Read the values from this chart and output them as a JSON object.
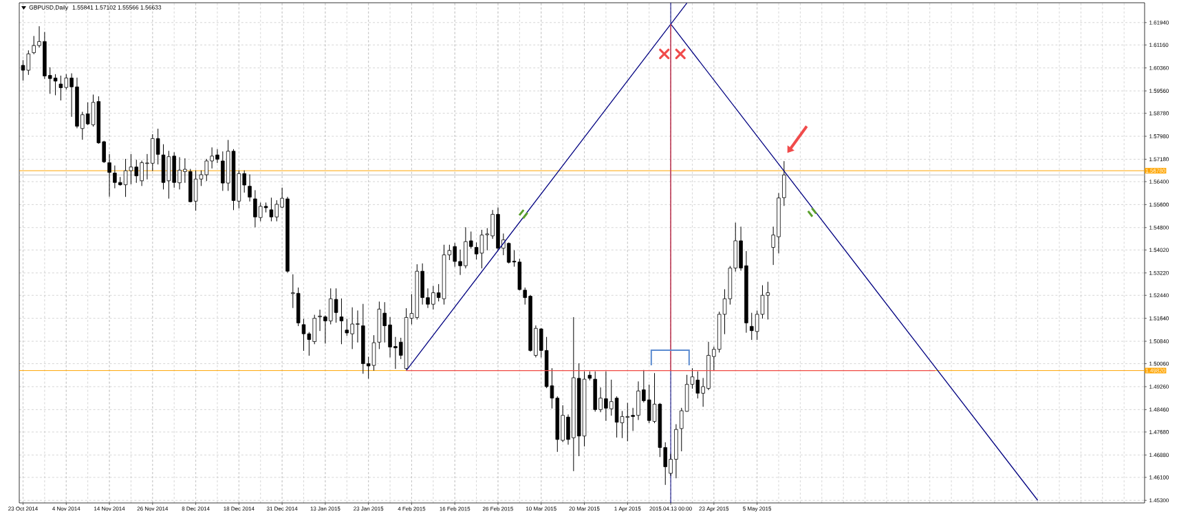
{
  "chart_data": {
    "type": "candlestick",
    "title": "GBPUSD,Daily",
    "subtitle": "1.55841 1.57102 1.55566 1.56633",
    "categories": [
      "23 Oct 2014",
      null,
      null,
      null,
      null,
      null,
      null,
      null,
      "4 Nov 2014",
      null,
      null,
      null,
      null,
      null,
      null,
      null,
      "14 Nov 2014",
      null,
      null,
      null,
      null,
      null,
      null,
      null,
      "26 Nov 2014",
      null,
      null,
      null,
      null,
      null,
      null,
      null,
      "8 Dec 2014",
      null,
      null,
      null,
      null,
      null,
      null,
      null,
      "18 Dec 2014",
      null,
      null,
      null,
      null,
      null,
      null,
      null,
      "31 Dec 2014",
      null,
      null,
      null,
      null,
      null,
      null,
      null,
      "13 Jan 2015",
      null,
      null,
      null,
      null,
      null,
      null,
      null,
      "23 Jan 2015",
      null,
      null,
      null,
      null,
      null,
      null,
      null,
      "4 Feb 2015",
      null,
      null,
      null,
      null,
      null,
      null,
      null,
      "16 Feb 2015",
      null,
      null,
      null,
      null,
      null,
      null,
      null,
      "26 Feb 2015",
      null,
      null,
      null,
      null,
      null,
      null,
      null,
      "10 Mar 2015",
      null,
      null,
      null,
      null,
      null,
      null,
      null,
      "20 Mar 2015",
      null,
      null,
      null,
      null,
      null,
      null,
      null,
      "1 Apr 2015",
      null,
      null,
      null,
      null,
      null,
      null,
      null,
      "2015.04.13 00:00",
      null,
      null,
      null,
      null,
      null,
      null,
      null,
      "23 Apr 2015",
      null,
      null,
      null,
      null,
      null,
      null,
      null,
      "5 May 2015",
      null,
      null,
      null,
      null,
      null,
      null,
      null,
      null,
      null,
      null,
      null,
      null,
      null,
      null,
      null,
      null,
      null,
      null,
      null,
      null,
      null,
      null,
      null,
      null,
      null,
      null,
      null,
      null,
      null,
      null,
      null,
      null,
      null,
      null,
      null,
      null,
      null,
      null,
      null,
      null,
      null,
      null,
      null,
      null,
      null,
      null,
      null,
      null,
      null,
      null,
      null,
      null,
      null,
      null,
      null,
      null,
      null,
      null,
      null,
      null,
      null,
      null,
      null,
      null,
      null,
      null,
      null,
      null,
      null,
      null,
      null
    ],
    "ohlc": [
      [
        1.6045,
        1.6062,
        1.5993,
        1.6028
      ],
      [
        1.6028,
        1.6096,
        1.6013,
        1.6085
      ],
      [
        1.6089,
        1.6146,
        1.6085,
        1.6114
      ],
      [
        1.6114,
        1.618,
        1.6108,
        1.6128
      ],
      [
        1.6128,
        1.616,
        1.5999,
        1.6008
      ],
      [
        1.601,
        1.6037,
        1.5947,
        1.5999
      ],
      [
        1.6001,
        1.6013,
        1.5942,
        1.599
      ],
      [
        1.598,
        1.6008,
        1.5924,
        1.5967
      ],
      [
        1.5968,
        1.6013,
        1.5962,
        1.6001
      ],
      [
        1.6001,
        1.6016,
        1.5867,
        1.597
      ],
      [
        1.597,
        1.6001,
        1.5827,
        1.5833
      ],
      [
        1.5825,
        1.5882,
        1.5787,
        1.5873
      ],
      [
        1.5876,
        1.5915,
        1.5838,
        1.5841
      ],
      [
        1.5838,
        1.5942,
        1.5833,
        1.5916
      ],
      [
        1.5919,
        1.5936,
        1.5773,
        1.5775
      ],
      [
        1.5779,
        1.5781,
        1.5706,
        1.5709
      ],
      [
        1.5706,
        1.5735,
        1.5589,
        1.5672
      ],
      [
        1.567,
        1.5695,
        1.5618,
        1.5637
      ],
      [
        1.5637,
        1.5655,
        1.5627,
        1.5629
      ],
      [
        1.5629,
        1.5718,
        1.5588,
        1.5678
      ],
      [
        1.5678,
        1.5735,
        1.5632,
        1.5691
      ],
      [
        1.5691,
        1.5715,
        1.5637,
        1.566
      ],
      [
        1.5643,
        1.5712,
        1.5626,
        1.5706
      ],
      [
        1.5703,
        1.5735,
        1.5649,
        1.5705
      ],
      [
        1.5704,
        1.5804,
        1.5678,
        1.579
      ],
      [
        1.579,
        1.5823,
        1.5701,
        1.5735
      ],
      [
        1.5733,
        1.5769,
        1.5614,
        1.5637
      ],
      [
        1.5643,
        1.5746,
        1.5582,
        1.5727
      ],
      [
        1.5729,
        1.5741,
        1.562,
        1.5637
      ],
      [
        1.5636,
        1.5724,
        1.5614,
        1.568
      ],
      [
        1.5675,
        1.572,
        1.5637,
        1.5683
      ],
      [
        1.5675,
        1.5683,
        1.5569,
        1.557
      ],
      [
        1.5572,
        1.5678,
        1.554,
        1.5649
      ],
      [
        1.5649,
        1.5678,
        1.5626,
        1.5664
      ],
      [
        1.5664,
        1.5718,
        1.5643,
        1.5712
      ],
      [
        1.5712,
        1.5758,
        1.5687,
        1.5729
      ],
      [
        1.5733,
        1.5752,
        1.5706,
        1.5718
      ],
      [
        1.5712,
        1.5744,
        1.5609,
        1.5635
      ],
      [
        1.5635,
        1.5784,
        1.5609,
        1.5746
      ],
      [
        1.5746,
        1.5752,
        1.5542,
        1.5574
      ],
      [
        1.5572,
        1.5678,
        1.5548,
        1.5668
      ],
      [
        1.5668,
        1.5678,
        1.5603,
        1.5628
      ],
      [
        1.5624,
        1.5664,
        1.5572,
        1.5586
      ],
      [
        1.558,
        1.5609,
        1.5482,
        1.5517
      ],
      [
        1.5515,
        1.5566,
        1.5503,
        1.5554
      ],
      [
        1.5554,
        1.5566,
        1.5534,
        1.5549
      ],
      [
        1.5542,
        1.5583,
        1.5503,
        1.5517
      ],
      [
        1.5517,
        1.5574,
        1.5503,
        1.5561
      ],
      [
        1.5551,
        1.5618,
        1.5549,
        1.5582
      ],
      [
        1.558,
        1.5586,
        1.5324,
        1.5328
      ],
      [
        1.525,
        1.5316,
        1.5201,
        1.5253
      ],
      [
        1.5251,
        1.527,
        1.5138,
        1.5148
      ],
      [
        1.5142,
        1.5161,
        1.5052,
        1.511
      ],
      [
        1.511,
        1.5115,
        1.5035,
        1.509
      ],
      [
        1.5083,
        1.5175,
        1.5075,
        1.5164
      ],
      [
        1.5169,
        1.5193,
        1.5121,
        1.5172
      ],
      [
        1.5169,
        1.5173,
        1.5077,
        1.5155
      ],
      [
        1.5155,
        1.5267,
        1.5144,
        1.5232
      ],
      [
        1.523,
        1.5267,
        1.515,
        1.5184
      ],
      [
        1.5169,
        1.5232,
        1.5075,
        1.5155
      ],
      [
        1.5123,
        1.5161,
        1.5104,
        1.5113
      ],
      [
        1.511,
        1.5201,
        1.5058,
        1.5144
      ],
      [
        1.5143,
        1.519,
        1.5081,
        1.5145
      ],
      [
        1.5138,
        1.5213,
        1.4972,
        1.5006
      ],
      [
        1.5006,
        1.5029,
        1.4955,
        1.4998
      ],
      [
        1.5,
        1.5104,
        1.4983,
        1.5079
      ],
      [
        1.5081,
        1.5221,
        1.5058,
        1.5196
      ],
      [
        1.5182,
        1.5219,
        1.5081,
        1.5138
      ],
      [
        1.5141,
        1.5167,
        1.5029,
        1.5064
      ],
      [
        1.5066,
        1.5098,
        1.4989,
        1.5061
      ],
      [
        1.5081,
        1.5095,
        1.5023,
        1.5035
      ],
      [
        1.4989,
        1.5198,
        1.4987,
        1.5167
      ],
      [
        1.5164,
        1.5247,
        1.5144,
        1.5181
      ],
      [
        1.5167,
        1.5351,
        1.5161,
        1.5328
      ],
      [
        1.5328,
        1.5354,
        1.5213,
        1.5236
      ],
      [
        1.5236,
        1.5267,
        1.5201,
        1.5213
      ],
      [
        1.5213,
        1.5276,
        1.5196,
        1.5253
      ],
      [
        1.5253,
        1.5282,
        1.5224,
        1.5236
      ],
      [
        1.5232,
        1.5419,
        1.5213,
        1.5385
      ],
      [
        1.5385,
        1.5419,
        1.5368,
        1.54
      ],
      [
        1.5414,
        1.5425,
        1.5345,
        1.5362
      ],
      [
        1.5362,
        1.5402,
        1.5316,
        1.5347
      ],
      [
        1.5347,
        1.548,
        1.5339,
        1.5431
      ],
      [
        1.5434,
        1.5465,
        1.5408,
        1.5414
      ],
      [
        1.5411,
        1.5427,
        1.537,
        1.5388
      ],
      [
        1.5391,
        1.5471,
        1.5339,
        1.5454
      ],
      [
        1.5455,
        1.5477,
        1.5402,
        1.5458
      ],
      [
        1.5451,
        1.554,
        1.5442,
        1.5526
      ],
      [
        1.5526,
        1.5549,
        1.5402,
        1.5408
      ],
      [
        1.5408,
        1.5458,
        1.5385,
        1.5437
      ],
      [
        1.5425,
        1.5427,
        1.5356,
        1.5359
      ],
      [
        1.5363,
        1.54,
        1.5345,
        1.536
      ],
      [
        1.536,
        1.537,
        1.5262,
        1.5264
      ],
      [
        1.5262,
        1.527,
        1.5213,
        1.5236
      ],
      [
        1.5241,
        1.5244,
        1.5049,
        1.5052
      ],
      [
        1.5035,
        1.5138,
        1.5029,
        1.5129
      ],
      [
        1.5127,
        1.5129,
        1.5029,
        1.5052
      ],
      [
        1.5052,
        1.5098,
        1.4922,
        1.4926
      ],
      [
        1.4929,
        1.4989,
        1.4851,
        1.4886
      ],
      [
        1.4886,
        1.4891,
        1.47,
        1.4742
      ],
      [
        1.4739,
        1.486,
        1.4734,
        1.4826
      ],
      [
        1.482,
        1.4828,
        1.4725,
        1.4742
      ],
      [
        1.4748,
        1.5167,
        1.4633,
        1.4957
      ],
      [
        1.4955,
        1.5006,
        1.4685,
        1.4754
      ],
      [
        1.4754,
        1.4978,
        1.4719,
        1.4952
      ],
      [
        1.4966,
        1.4978,
        1.4949,
        1.4955
      ],
      [
        1.4952,
        1.4978,
        1.484,
        1.4846
      ],
      [
        1.4846,
        1.4922,
        1.4838,
        1.4886
      ],
      [
        1.4884,
        1.4978,
        1.4808,
        1.4851
      ],
      [
        1.4849,
        1.4949,
        1.4826,
        1.4874
      ],
      [
        1.4886,
        1.4891,
        1.475,
        1.4802
      ],
      [
        1.48,
        1.484,
        1.4748,
        1.4822
      ],
      [
        1.4819,
        1.4868,
        1.4737,
        1.4822
      ],
      [
        1.4826,
        1.4851,
        1.4773,
        1.4822
      ],
      [
        1.4826,
        1.4943,
        1.4811,
        1.4911
      ],
      [
        1.4915,
        1.4983,
        1.4872,
        1.4877
      ],
      [
        1.488,
        1.4932,
        1.48,
        1.4808
      ],
      [
        1.4805,
        1.4972,
        1.48,
        1.4865
      ],
      [
        1.4865,
        1.4868,
        1.4682,
        1.4714
      ],
      [
        1.4714,
        1.4731,
        1.4585,
        1.4647
      ],
      [
        1.4624,
        1.4691,
        1.4616,
        1.4673
      ],
      [
        1.4673,
        1.4794,
        1.4608,
        1.4777
      ],
      [
        1.478,
        1.4851,
        1.4702,
        1.4842
      ],
      [
        1.484,
        1.4966,
        1.484,
        1.4934
      ],
      [
        1.4934,
        1.4989,
        1.492,
        1.496
      ],
      [
        1.4949,
        1.4978,
        1.4886,
        1.4903
      ],
      [
        1.4903,
        1.4955,
        1.4857,
        1.4926
      ],
      [
        1.492,
        1.5081,
        1.4915,
        1.5035
      ],
      [
        1.5031,
        1.5064,
        1.4983,
        1.5056
      ],
      [
        1.5056,
        1.5186,
        1.5046,
        1.5178
      ],
      [
        1.5178,
        1.5264,
        1.511,
        1.5232
      ],
      [
        1.5232,
        1.5345,
        1.5213,
        1.5339
      ],
      [
        1.5339,
        1.5496,
        1.5328,
        1.5434
      ],
      [
        1.5434,
        1.5482,
        1.5331,
        1.5339
      ],
      [
        1.5347,
        1.5397,
        1.5115,
        1.5148
      ],
      [
        1.5136,
        1.5182,
        1.509,
        1.5121
      ],
      [
        1.5118,
        1.519,
        1.509,
        1.5178
      ],
      [
        1.5178,
        1.5278,
        1.5164,
        1.5244
      ],
      [
        1.5244,
        1.529,
        1.5161,
        1.5253
      ],
      [
        1.5411,
        1.5482,
        1.5351,
        1.5454
      ],
      [
        1.5448,
        1.5599,
        1.5391,
        1.5583
      ],
      [
        1.55841,
        1.57102,
        1.55566,
        1.56633
      ],
      null,
      null,
      null,
      null,
      null,
      null,
      null,
      null,
      null,
      null,
      null,
      null,
      null,
      null,
      null,
      null,
      null,
      null,
      null,
      null,
      null,
      null,
      null,
      null,
      null,
      null,
      null,
      null,
      null,
      null,
      null,
      null,
      null,
      null,
      null,
      null,
      null,
      null,
      null,
      null,
      null,
      null,
      null,
      null,
      null,
      null,
      null,
      null,
      null,
      null,
      null,
      null,
      null,
      null,
      null,
      null,
      null,
      null,
      null,
      null,
      null,
      null,
      null,
      null,
      null,
      null
    ],
    "series": [
      {
        "type": "line",
        "color": "#000080",
        "values": [
          null,
          null,
          null,
          null,
          null,
          null,
          null,
          null,
          null,
          null,
          null,
          null,
          null,
          null,
          null,
          null,
          null,
          null,
          null,
          null,
          null,
          null,
          null,
          null,
          null,
          null,
          null,
          null,
          null,
          null,
          null,
          null,
          null,
          null,
          null,
          null,
          null,
          null,
          null,
          null,
          null,
          null,
          null,
          null,
          null,
          null,
          null,
          null,
          null,
          null,
          null,
          null,
          null,
          null,
          null,
          null,
          null,
          null,
          null,
          null,
          null,
          null,
          null,
          null,
          null,
          null,
          null,
          null,
          null,
          null,
          null,
          1.4982,
          null,
          null,
          null,
          null,
          null,
          null,
          null,
          null,
          null,
          null,
          null,
          null,
          null,
          null,
          null,
          null,
          null,
          null,
          null,
          null,
          null,
          null,
          null,
          null,
          null,
          null,
          null,
          null,
          null,
          null,
          null,
          null,
          null,
          null,
          null,
          null,
          null,
          null,
          null,
          null,
          null,
          null,
          null,
          null,
          null,
          null,
          null,
          null,
          null,
          null,
          null,
          1.6262,
          null,
          null,
          null,
          null,
          null,
          null,
          null,
          null,
          null,
          null,
          null,
          null,
          null,
          null,
          null,
          null,
          null,
          null,
          null,
          null,
          null,
          null,
          null,
          null,
          null,
          null,
          null,
          null,
          null,
          null,
          null,
          null,
          null,
          null,
          null,
          null,
          null,
          null,
          null,
          null,
          null,
          null,
          null,
          null,
          null,
          null,
          null,
          null,
          null,
          null,
          null,
          null,
          null,
          null,
          null,
          null,
          null,
          null,
          null,
          null,
          null,
          null,
          null,
          null,
          null,
          null,
          null,
          null,
          null,
          null,
          null,
          null,
          null,
          null,
          null,
          null,
          null,
          null,
          null,
          null,
          null,
          null,
          null,
          null
        ]
      },
      {
        "type": "line",
        "color": "#000080",
        "values": [
          null,
          null,
          null,
          null,
          null,
          null,
          null,
          null,
          null,
          null,
          null,
          null,
          null,
          null,
          null,
          null,
          null,
          null,
          null,
          null,
          null,
          null,
          null,
          null,
          null,
          null,
          null,
          null,
          null,
          null,
          null,
          null,
          null,
          null,
          null,
          null,
          null,
          null,
          null,
          null,
          null,
          null,
          null,
          null,
          null,
          null,
          null,
          null,
          null,
          null,
          null,
          null,
          null,
          null,
          null,
          null,
          null,
          null,
          null,
          null,
          null,
          null,
          null,
          null,
          null,
          null,
          null,
          null,
          null,
          null,
          null,
          null,
          null,
          null,
          null,
          null,
          null,
          null,
          null,
          null,
          null,
          null,
          null,
          null,
          null,
          null,
          null,
          null,
          null,
          null,
          null,
          null,
          null,
          null,
          null,
          null,
          null,
          null,
          null,
          null,
          null,
          null,
          null,
          null,
          null,
          null,
          null,
          null,
          null,
          null,
          null,
          null,
          null,
          null,
          null,
          null,
          null,
          null,
          null,
          null,
          1.6189,
          null,
          null,
          null,
          null,
          null,
          null,
          null,
          null,
          null,
          null,
          null,
          null,
          null,
          null,
          null,
          null,
          null,
          null,
          null,
          null,
          null,
          null,
          null,
          null,
          null,
          null,
          null,
          null,
          null,
          null,
          null,
          null,
          null,
          null,
          null,
          null,
          null,
          null,
          null,
          null,
          null,
          null,
          null,
          null,
          null,
          null,
          null,
          null,
          null,
          null,
          null,
          null,
          null,
          null,
          null,
          null,
          null,
          null,
          null,
          null,
          null,
          null,
          null,
          null,
          null,
          null,
          null,
          1.453,
          null,
          null,
          null,
          null,
          null,
          null,
          null,
          null,
          null,
          null,
          null,
          null,
          null,
          null,
          null,
          null,
          null,
          null,
          null
        ]
      },
      {
        "type": "line",
        "color": "#f04b4b",
        "values": [
          null,
          null,
          null,
          null,
          null,
          null,
          null,
          null,
          null,
          null,
          null,
          null,
          null,
          null,
          null,
          null,
          null,
          null,
          null,
          null,
          null,
          null,
          null,
          null,
          null,
          null,
          null,
          null,
          null,
          null,
          null,
          null,
          null,
          null,
          null,
          null,
          null,
          null,
          null,
          null,
          null,
          null,
          null,
          null,
          null,
          null,
          null,
          null,
          null,
          null,
          null,
          null,
          null,
          null,
          null,
          null,
          null,
          null,
          null,
          null,
          null,
          null,
          null,
          null,
          null,
          null,
          null,
          null,
          null,
          null,
          null,
          1.4982,
          null,
          null,
          null,
          null,
          null,
          null,
          null,
          null,
          null,
          null,
          null,
          null,
          null,
          null,
          null,
          null,
          null,
          null,
          null,
          null,
          null,
          null,
          null,
          null,
          null,
          null,
          null,
          null,
          null,
          null,
          null,
          null,
          null,
          null,
          null,
          null,
          null,
          null,
          null,
          null,
          null,
          null,
          null,
          null,
          null,
          null,
          null,
          null,
          null,
          null,
          null,
          null,
          null,
          null,
          null,
          null,
          null,
          null,
          null,
          null,
          null,
          null,
          null,
          null,
          null,
          null,
          null,
          null,
          null,
          null,
          null,
          null,
          null,
          null,
          null,
          null,
          null,
          null,
          null,
          null,
          null,
          null,
          null,
          null,
          null,
          null,
          null,
          null,
          null,
          null,
          null,
          null,
          null,
          null,
          null,
          null,
          null,
          1.4982,
          null,
          null,
          null,
          null,
          null,
          null,
          null,
          null,
          null,
          null,
          null,
          null,
          null,
          null,
          null,
          null,
          null,
          null,
          null,
          null,
          null,
          null,
          null,
          null,
          null,
          null,
          null,
          null,
          null,
          null,
          null,
          null,
          null,
          null,
          null,
          null,
          null,
          null
        ]
      },
      {
        "type": "line",
        "color": "#f04b4b",
        "x": [
          "2015.04.13 00:00",
          "2015.04.13 00:00"
        ],
        "values": [
          1.4982,
          1.6189
        ]
      }
    ],
    "ylim": [
      1.4521,
      1.6263
    ],
    "yticks": [
      {
        "value": 1.6194,
        "label": "1.61940"
      },
      {
        "value": 1.6116,
        "label": "1.61160"
      },
      {
        "value": 1.6036,
        "label": "1.60360"
      },
      {
        "value": 1.5956,
        "label": "1.59560"
      },
      {
        "value": 1.5878,
        "label": "1.58780"
      },
      {
        "value": 1.5798,
        "label": "1.57980"
      },
      {
        "value": 1.5718,
        "label": "1.57180"
      },
      {
        "value": 1.564,
        "label": "1.56400"
      },
      {
        "value": 1.556,
        "label": "1.55600"
      },
      {
        "value": 1.548,
        "label": "1.54800"
      },
      {
        "value": 1.5402,
        "label": "1.54020"
      },
      {
        "value": 1.5322,
        "label": "1.53220"
      },
      {
        "value": 1.5244,
        "label": "1.52440"
      },
      {
        "value": 1.5164,
        "label": "1.51640"
      },
      {
        "value": 1.5084,
        "label": "1.50840"
      },
      {
        "value": 1.5006,
        "label": "1.50060"
      },
      {
        "value": 1.4926,
        "label": "1.49260"
      },
      {
        "value": 1.4846,
        "label": "1.48460"
      },
      {
        "value": 1.4768,
        "label": "1.47680"
      },
      {
        "value": 1.4688,
        "label": "1.46880"
      },
      {
        "value": 1.461,
        "label": "1.46100"
      },
      {
        "value": 1.453,
        "label": "1.45300"
      }
    ],
    "ref_lines": [
      {
        "axis": "y",
        "value": 1.56633,
        "color": "#c0c0c0"
      },
      {
        "axis": "y",
        "value": 1.5678,
        "label": "1.56780",
        "color": "#ffa500"
      },
      {
        "axis": "y",
        "value": 1.4982,
        "label": "1.49820",
        "color": "#ffa500"
      },
      {
        "axis": "x",
        "value": "2015.04.13 00:00",
        "color": "#000080"
      }
    ],
    "grid": true
  }
}
